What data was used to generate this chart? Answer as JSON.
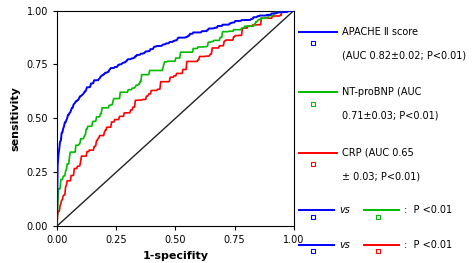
{
  "title": "",
  "xlabel": "1-specifity",
  "ylabel": "sensitivity",
  "xlim": [
    0.0,
    1.0
  ],
  "ylim": [
    0.0,
    1.0
  ],
  "xticks": [
    0.0,
    0.25,
    0.5,
    0.75,
    1.0
  ],
  "yticks": [
    0.0,
    0.25,
    0.5,
    0.75,
    1.0
  ],
  "color_apache": "#0000FF",
  "color_ntprobnp": "#00BB00",
  "color_crp": "#FF0000",
  "color_diagonal": "#222222",
  "auc_apache": 0.82,
  "auc_ntprobnp": 0.71,
  "auc_crp": 0.65,
  "legend_apache_line1": "APACHE Ⅱ score",
  "legend_apache_line2": "(AUC 0.82±0.02; P<0.01)",
  "legend_ntprobnp_line1": "NT-proBNP (AUC",
  "legend_ntprobnp_line2": "0.71±0.03; P<0.01)",
  "legend_crp_line1": "CRP (AUC 0.65",
  "legend_crp_line2": "± 0.03; P<0.01)",
  "background_color": "#ffffff",
  "seed": 42
}
